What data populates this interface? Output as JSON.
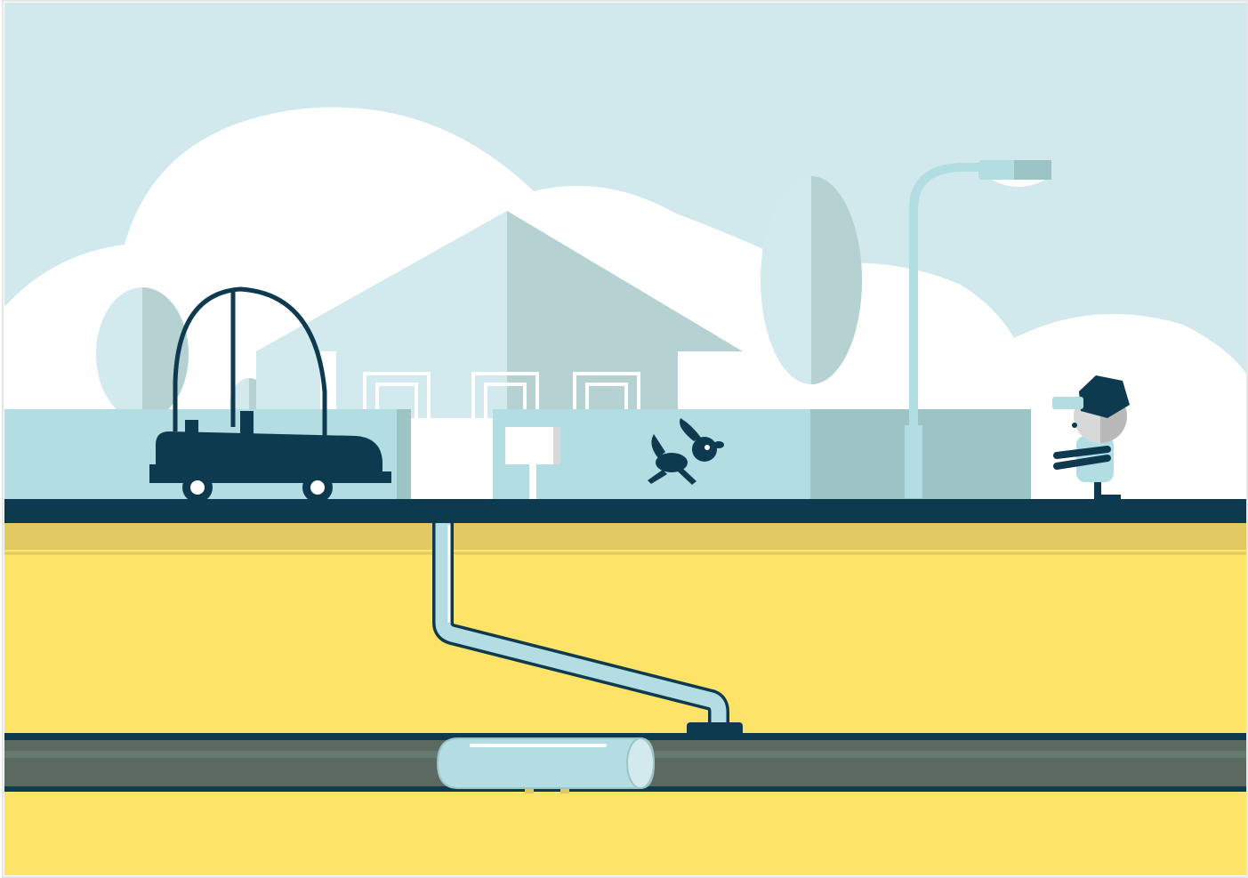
{
  "scene": {
    "description_title": "",
    "colors": {
      "sky": "#d1e9ec",
      "cloud": "#ffffff",
      "house_light": "#d2e9ed",
      "house_shadow": "#b6d1d2",
      "wall": "#b2dde3",
      "wall_dark": "#9dc4c4",
      "navy": "#0d3a4f",
      "soil": "#fde367",
      "soil_band": "#e3c962",
      "main_pipe": "#5c6961",
      "liner": "#b3dde3",
      "white": "#ffffff"
    },
    "elements": {
      "car": "car",
      "dog": "dog",
      "boy": "boy",
      "sign": "sign",
      "streetlight": "street-lamp",
      "house": "house",
      "trees": "tree",
      "service_pipe": "service-pipe",
      "main_sewer": "sewer-main",
      "pipe_liner": "pipe-liner"
    }
  }
}
